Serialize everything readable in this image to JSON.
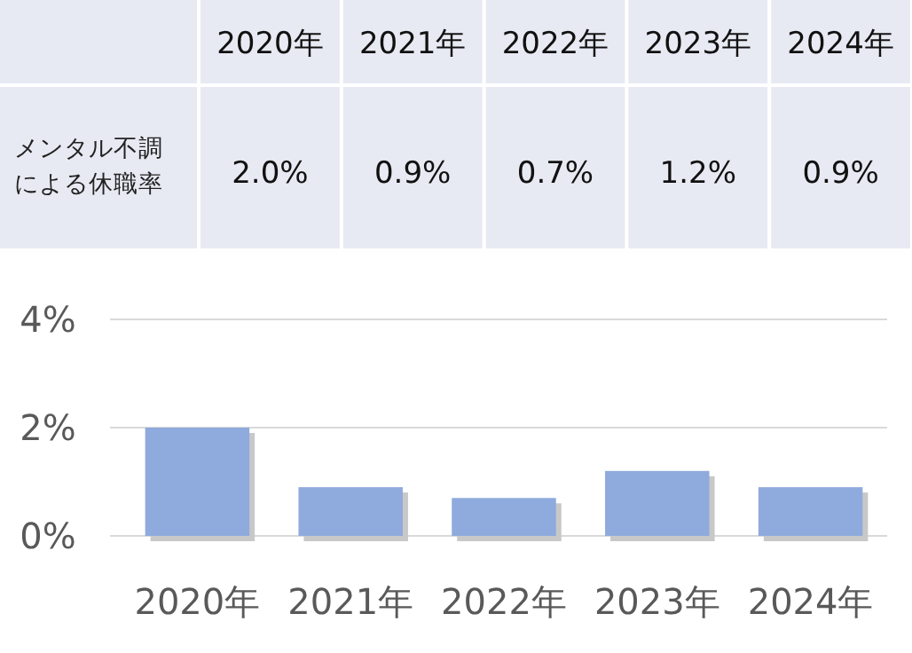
{
  "chart_data": {
    "type": "bar",
    "categories": [
      "2020年",
      "2021年",
      "2022年",
      "2023年",
      "2024年"
    ],
    "series": [
      {
        "name": "メンタル不調による休職率",
        "color": "#8faadc",
        "values": [
          2.0,
          0.9,
          0.7,
          1.2,
          0.9
        ],
        "value_labels": [
          "2.0%",
          "0.9%",
          "0.7%",
          "1.2%",
          "0.9%"
        ]
      }
    ],
    "ylim": [
      0,
      4
    ],
    "yticks": [
      {
        "value": 0,
        "label": "0%"
      },
      {
        "value": 2,
        "label": "2%"
      },
      {
        "value": 4,
        "label": "4%"
      }
    ],
    "grid": "y",
    "data_labels": true,
    "legend": false
  }
}
